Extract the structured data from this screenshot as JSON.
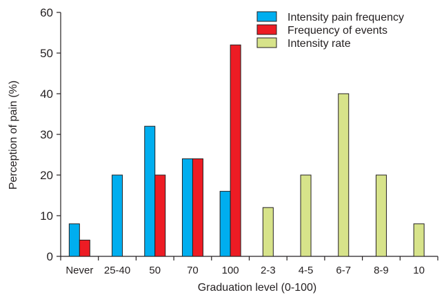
{
  "chart_data": {
    "type": "bar",
    "title": "",
    "xlabel": "Graduation level (0-100)",
    "ylabel": "Perception of pain (%)",
    "ylim": [
      0,
      60
    ],
    "yticks": [
      0,
      10,
      20,
      30,
      40,
      50,
      60
    ],
    "grid": false,
    "legend_position": "top-right",
    "categories": [
      "Never",
      "25-40",
      "50",
      "70",
      "100",
      "2-3",
      "4-5",
      "6-7",
      "8-9",
      "10"
    ],
    "series": [
      {
        "name": "Intensity pain frequency",
        "color": "#00aeef",
        "values": [
          8,
          20,
          32,
          24,
          16,
          null,
          null,
          null,
          null,
          null
        ]
      },
      {
        "name": "Frequency of events",
        "color": "#ed1c24",
        "values": [
          4,
          null,
          20,
          24,
          52,
          null,
          null,
          null,
          null,
          null
        ]
      },
      {
        "name": "Intensity rate",
        "color": "#d7e38a",
        "values": [
          null,
          null,
          null,
          null,
          null,
          12,
          20,
          40,
          20,
          8
        ]
      }
    ]
  }
}
